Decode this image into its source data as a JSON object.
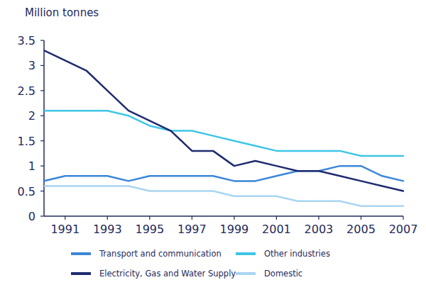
{
  "chart_data": {
    "type": "line",
    "ylabel": "Million tonnes",
    "x": [
      1990,
      1991,
      1992,
      1993,
      1994,
      1995,
      1996,
      1997,
      1998,
      1999,
      2000,
      2001,
      2002,
      2003,
      2004,
      2005,
      2006,
      2007
    ],
    "xlim": [
      1990,
      2007
    ],
    "xticks": [
      1991,
      1993,
      1995,
      1997,
      1999,
      2001,
      2003,
      2005,
      2007
    ],
    "ylim": [
      0,
      3.5
    ],
    "yticks": [
      0,
      0.5,
      1,
      1.5,
      2,
      2.5,
      3,
      3.5
    ],
    "grid": false,
    "legend": "bottom",
    "series": [
      {
        "name": "Transport and communication",
        "color": "#3b87d9",
        "values": [
          0.7,
          0.8,
          0.8,
          0.8,
          0.7,
          0.8,
          0.8,
          0.8,
          0.8,
          0.7,
          0.7,
          0.8,
          0.9,
          0.9,
          1.0,
          1.0,
          0.8,
          0.7
        ]
      },
      {
        "name": "Other industries",
        "color": "#3ec6e6",
        "values": [
          2.1,
          2.1,
          2.1,
          2.1,
          2.0,
          1.8,
          1.7,
          1.7,
          1.6,
          1.5,
          1.4,
          1.3,
          1.3,
          1.3,
          1.3,
          1.2,
          1.2,
          1.2
        ]
      },
      {
        "name": "Electricity, Gas and Water Supply",
        "color": "#1f2b6f",
        "values": [
          3.3,
          3.1,
          2.9,
          2.5,
          2.1,
          1.9,
          1.7,
          1.3,
          1.3,
          1.0,
          1.1,
          1.0,
          0.9,
          0.9,
          0.8,
          0.7,
          0.6,
          0.5
        ]
      },
      {
        "name": "Domestic",
        "color": "#a9d5f1",
        "values": [
          0.6,
          0.6,
          0.6,
          0.6,
          0.6,
          0.5,
          0.5,
          0.5,
          0.5,
          0.4,
          0.4,
          0.4,
          0.3,
          0.3,
          0.3,
          0.2,
          0.2,
          0.2
        ]
      }
    ]
  }
}
